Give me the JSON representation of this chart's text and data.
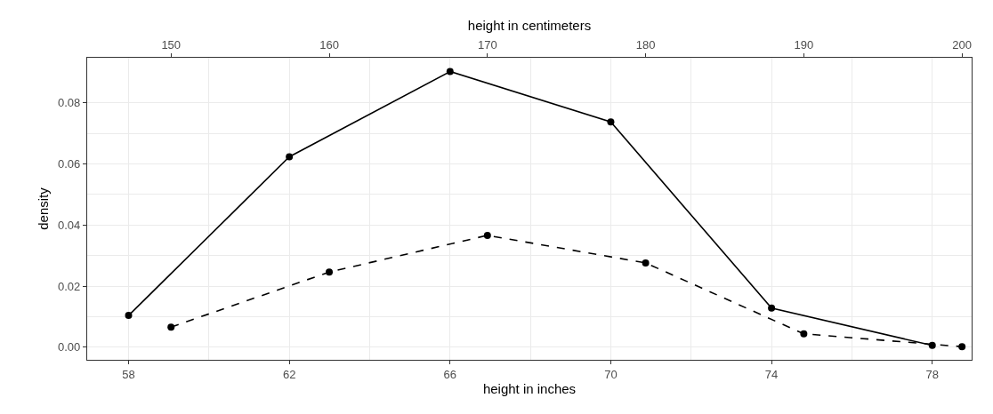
{
  "chart_data": {
    "type": "line",
    "xlabel": "height in inches",
    "x2label": "height in centimeters",
    "ylabel": "density",
    "series": [
      {
        "color": "#000000",
        "line_style": "solid",
        "x": [
          58,
          62,
          66,
          70,
          74,
          78
        ],
        "values": [
          0.0104,
          0.0623,
          0.0902,
          0.0737,
          0.0128,
          0.0006
        ]
      },
      {
        "color": "#000000",
        "line_style": "dashed",
        "axis": "x2",
        "x": [
          150,
          160,
          170,
          180,
          190,
          200
        ],
        "values": [
          0.0066,
          0.0246,
          0.0366,
          0.0276,
          0.0044,
          0.0002
        ]
      }
    ],
    "xlim": [
      56.97,
      78.98
    ],
    "xticks": [
      58,
      62,
      66,
      70,
      74,
      78
    ],
    "x2lim": [
      144.7,
      200.61
    ],
    "x2ticks": [
      150,
      160,
      170,
      180,
      190,
      200
    ],
    "ylim": [
      -0.0041,
      0.0947
    ],
    "yticks": [
      {
        "value": 0,
        "label": "0.00"
      },
      {
        "value": 0.02,
        "label": "0.02"
      },
      {
        "value": 0.04,
        "label": "0.04"
      },
      {
        "value": 0.06,
        "label": "0.06"
      },
      {
        "value": 0.08,
        "label": "0.08"
      }
    ],
    "grid": true,
    "marker": "circle"
  }
}
